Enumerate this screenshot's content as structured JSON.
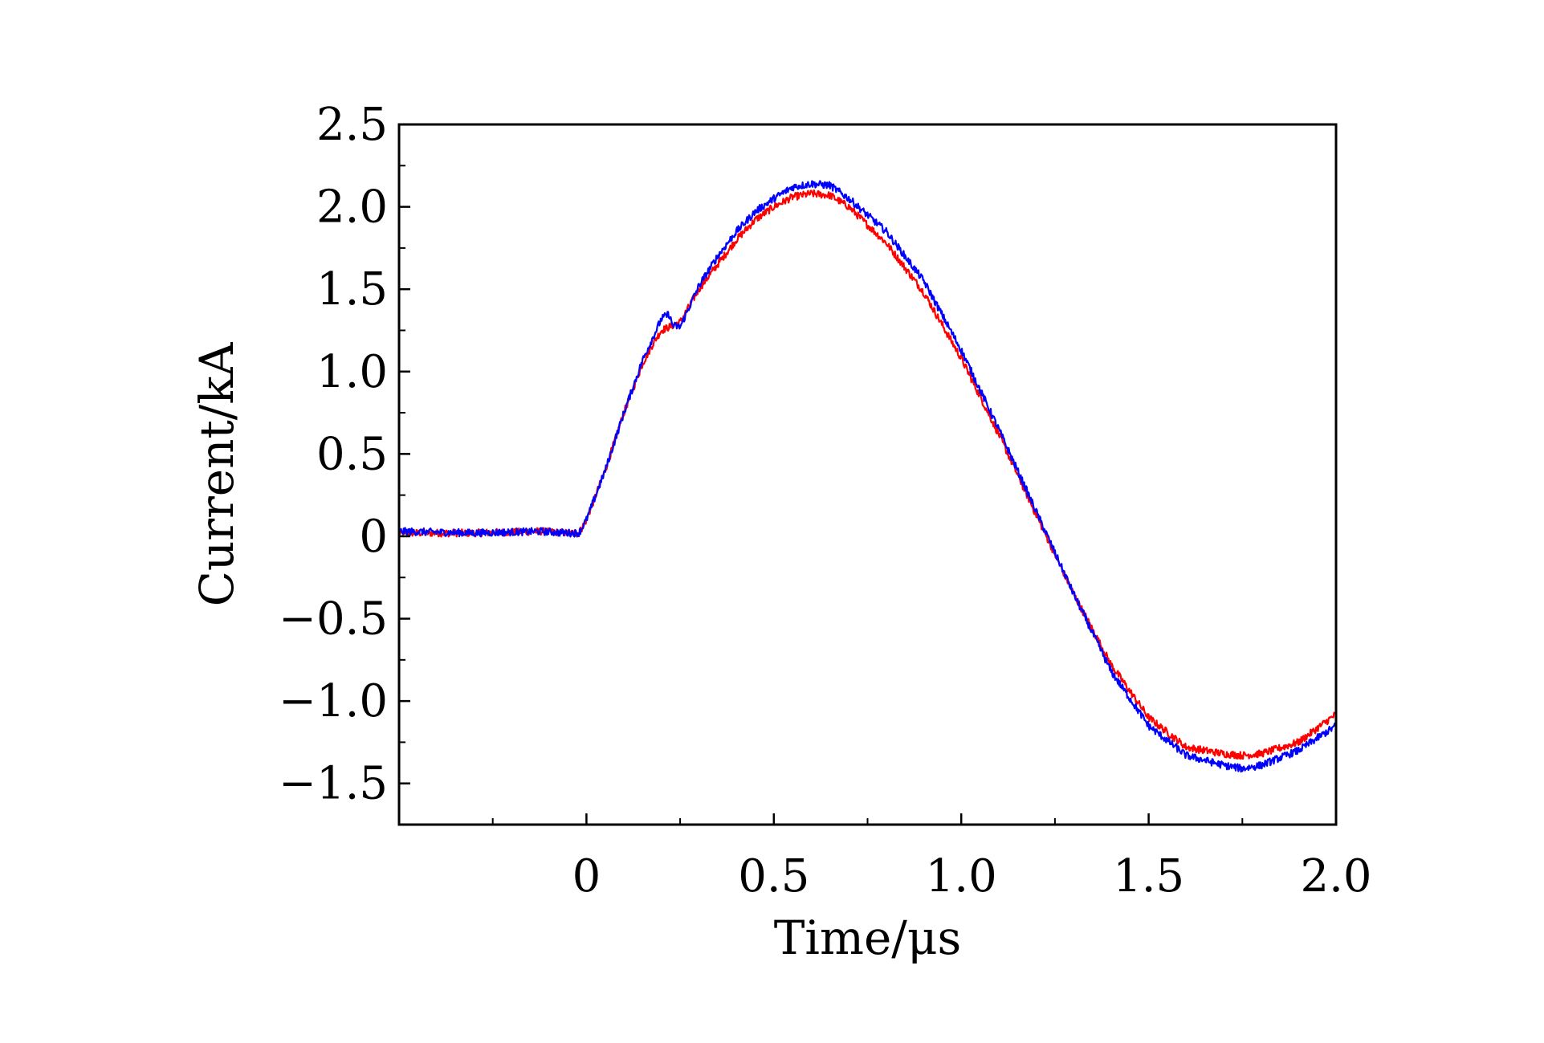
{
  "chart_data": {
    "type": "line",
    "title": "",
    "xlabel": "Time/μs",
    "ylabel": "Current/kA",
    "xlim": [
      -0.5,
      2.0
    ],
    "ylim": [
      -1.75,
      2.5
    ],
    "x_ticks": [
      {
        "value": 0,
        "label": "0"
      },
      {
        "value": 0.5,
        "label": "0.5"
      },
      {
        "value": 1.0,
        "label": "1.0"
      },
      {
        "value": 1.5,
        "label": "1.5"
      },
      {
        "value": 2.0,
        "label": "2.0"
      }
    ],
    "y_ticks": [
      {
        "value": 2.5,
        "label": "2.5"
      },
      {
        "value": 2.0,
        "label": "2.0"
      },
      {
        "value": 1.5,
        "label": "1.5"
      },
      {
        "value": 1.0,
        "label": "1.0"
      },
      {
        "value": 0.5,
        "label": "0.5"
      },
      {
        "value": 0,
        "label": "0"
      },
      {
        "value": -0.5,
        "label": "−0.5"
      },
      {
        "value": -1.0,
        "label": "−1.0"
      },
      {
        "value": -1.5,
        "label": "−1.5"
      }
    ],
    "grid": false,
    "legend": "none",
    "series": [
      {
        "color": "#ff0000",
        "x": [
          -0.5,
          -0.3,
          -0.12,
          -0.05,
          -0.02,
          0.0,
          0.05,
          0.1,
          0.15,
          0.18,
          0.2,
          0.22,
          0.25,
          0.3,
          0.35,
          0.4,
          0.45,
          0.5,
          0.55,
          0.6,
          0.65,
          0.7,
          0.8,
          0.9,
          1.0,
          1.1,
          1.2,
          1.3,
          1.4,
          1.5,
          1.6,
          1.7,
          1.75,
          1.8,
          1.9,
          2.0
        ],
        "y": [
          0.02,
          0.02,
          0.03,
          0.02,
          0.02,
          0.1,
          0.4,
          0.75,
          1.05,
          1.18,
          1.25,
          1.27,
          1.3,
          1.5,
          1.65,
          1.8,
          1.92,
          2.0,
          2.06,
          2.08,
          2.07,
          2.0,
          1.78,
          1.48,
          1.08,
          0.62,
          0.13,
          -0.35,
          -0.78,
          -1.1,
          -1.28,
          -1.32,
          -1.33,
          -1.32,
          -1.25,
          -1.08
        ]
      },
      {
        "color": "#0000ff",
        "x": [
          -0.5,
          -0.3,
          -0.12,
          -0.05,
          -0.02,
          0.0,
          0.05,
          0.1,
          0.15,
          0.18,
          0.2,
          0.22,
          0.23,
          0.25,
          0.3,
          0.35,
          0.4,
          0.45,
          0.5,
          0.55,
          0.6,
          0.65,
          0.7,
          0.8,
          0.9,
          1.0,
          1.1,
          1.2,
          1.3,
          1.4,
          1.5,
          1.6,
          1.7,
          1.75,
          1.8,
          1.9,
          2.0
        ],
        "y": [
          0.03,
          0.02,
          0.03,
          0.02,
          0.02,
          0.1,
          0.4,
          0.75,
          1.07,
          1.22,
          1.32,
          1.35,
          1.28,
          1.27,
          1.52,
          1.7,
          1.85,
          1.97,
          2.05,
          2.12,
          2.14,
          2.13,
          2.05,
          1.85,
          1.55,
          1.13,
          0.65,
          0.15,
          -0.35,
          -0.82,
          -1.15,
          -1.33,
          -1.39,
          -1.41,
          -1.39,
          -1.3,
          -1.15
        ]
      }
    ]
  }
}
